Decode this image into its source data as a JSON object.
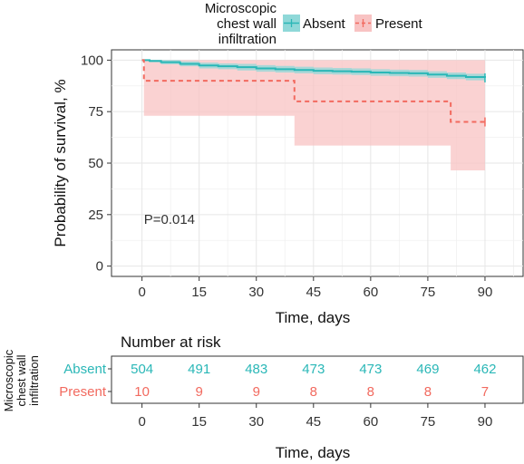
{
  "colors": {
    "absent": "#2ab7b7",
    "present": "#f26a5f",
    "absent_band": "#8fd8d8",
    "present_band": "#f8c3c3"
  },
  "legend": {
    "title_lines": [
      "Microscopic",
      "chest wall",
      "infiltration"
    ],
    "placement": "top"
  },
  "chart_data": [
    {
      "type": "line",
      "subtype": "kaplan-meier",
      "title": "",
      "xlabel": "Time, days",
      "ylabel": "Probability of survival, %",
      "xlim": [
        -8,
        100
      ],
      "ylim": [
        -5,
        105
      ],
      "xticks": [
        0,
        15,
        30,
        45,
        60,
        75,
        90
      ],
      "yticks": [
        0,
        25,
        50,
        75,
        100
      ],
      "grid": true,
      "annotation": "P=0.014",
      "series": [
        {
          "name": "Absent",
          "x": [
            0,
            2,
            5,
            10,
            15,
            20,
            25,
            30,
            35,
            40,
            45,
            50,
            55,
            60,
            65,
            70,
            75,
            80,
            85,
            90
          ],
          "y": [
            100,
            99.6,
            99,
            98.2,
            97.4,
            97,
            96.6,
            96,
            95.6,
            95.2,
            94.8,
            94.6,
            94.4,
            94,
            93.8,
            93.6,
            93,
            92.4,
            91.8,
            91.4
          ],
          "ci_lower": [
            100,
            99,
            98,
            97,
            96,
            95.6,
            95,
            94.4,
            94,
            93.6,
            93.2,
            93,
            92.8,
            92.4,
            92.2,
            92,
            91.4,
            90.8,
            90.2,
            89.8
          ],
          "ci_upper": [
            100,
            100,
            100,
            99.4,
            98.8,
            98.4,
            98.2,
            97.6,
            97.2,
            96.8,
            96.4,
            96.2,
            96,
            95.6,
            95.4,
            95.2,
            94.6,
            94,
            93.4,
            93
          ]
        },
        {
          "name": "Present",
          "x": [
            0,
            0.5,
            40,
            81,
            90
          ],
          "y": [
            100,
            90,
            80,
            70,
            70
          ],
          "ci_lower": [
            100,
            73,
            58.5,
            46.5,
            46.5
          ],
          "ci_upper": [
            100,
            100,
            100,
            100,
            100
          ],
          "style": "dashed"
        }
      ]
    },
    {
      "type": "table",
      "title": "Number at risk",
      "row_group_label": "Microscopic chest wall infiltration",
      "xlabel": "Time, days",
      "xticks": [
        0,
        15,
        30,
        45,
        60,
        75,
        90
      ],
      "rows": [
        {
          "name": "Absent",
          "values": [
            "504",
            "491",
            "483",
            "473",
            "473",
            "469",
            "462"
          ]
        },
        {
          "name": "Present",
          "values": [
            "10",
            "9",
            "9",
            "8",
            "8",
            "8",
            "7"
          ]
        }
      ]
    }
  ]
}
